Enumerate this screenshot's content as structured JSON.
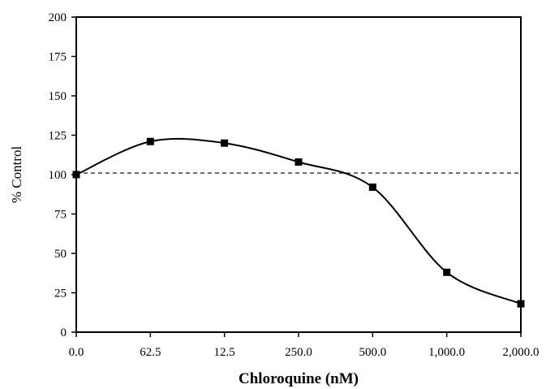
{
  "chart_data": {
    "type": "line",
    "title": "",
    "xlabel": "Chloroquine (nM)",
    "ylabel": "% Control",
    "categories": [
      "0.0",
      "62.5",
      "12.5",
      "250.0",
      "500.0",
      "1,000.0",
      "2,000.0"
    ],
    "series": [
      {
        "values": [
          100,
          121,
          120,
          108,
          92,
          38,
          18
        ]
      }
    ],
    "reference_line": {
      "y": 101,
      "style": "dashed"
    },
    "ylim": [
      0,
      200
    ],
    "yticks": [
      0,
      25,
      50,
      75,
      100,
      125,
      150,
      175,
      200
    ],
    "grid": false,
    "legend": "none",
    "marker": "square",
    "line_color": "#000000"
  }
}
